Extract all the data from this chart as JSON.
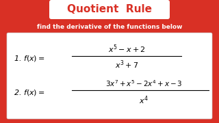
{
  "bg_color": "#d93025",
  "title": "Quotient  Rule",
  "title_box_facecolor": "#ffffff",
  "title_text_color": "#d93025",
  "subtitle": "find the derivative of the functions below",
  "subtitle_color": "#ffffff",
  "formula_box_color": "#ffffff",
  "text_color": "#000000",
  "figwidth": 3.2,
  "figheight": 1.8,
  "dpi": 100
}
